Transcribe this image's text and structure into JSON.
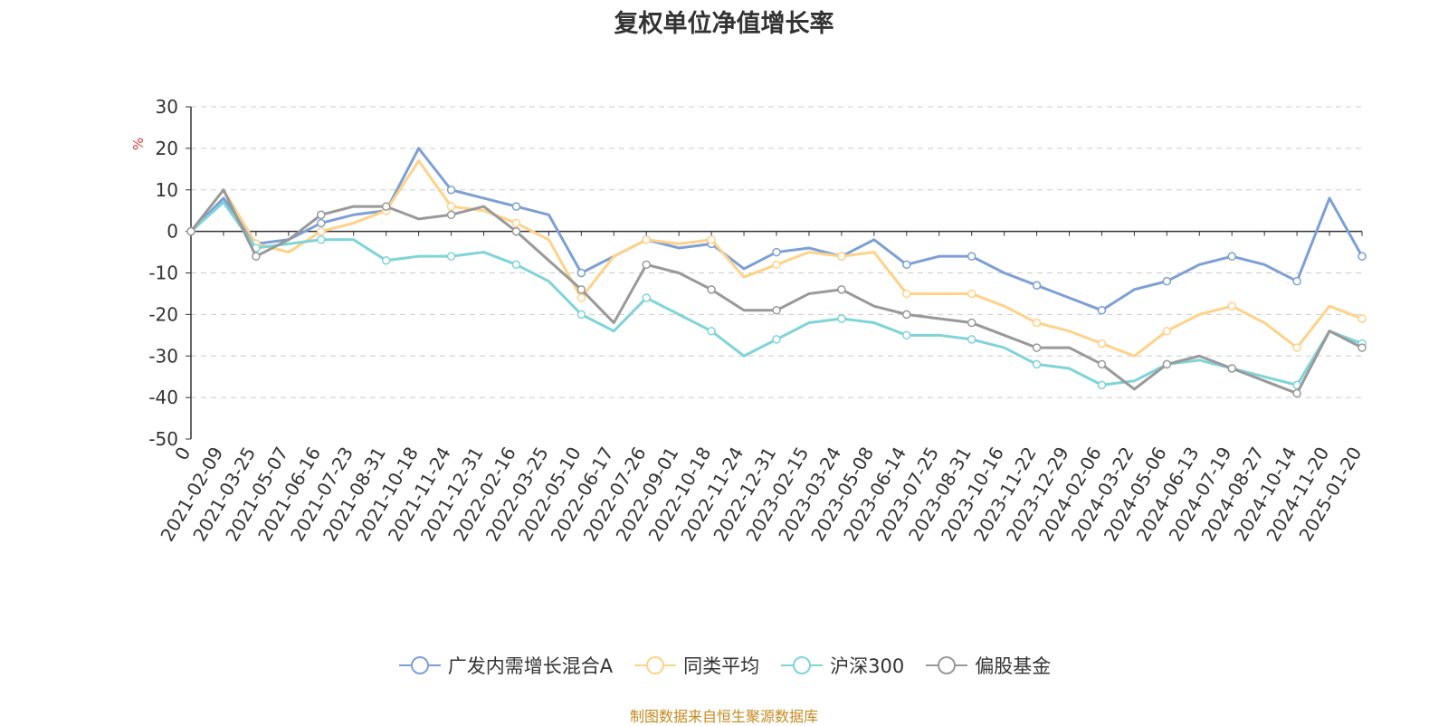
{
  "chart_data": {
    "type": "line",
    "title": "复权单位净值增长率",
    "ylabel": "%",
    "ylim": [
      -50,
      30
    ],
    "y_ticks": [
      30,
      20,
      10,
      0,
      -10,
      -20,
      -30,
      -40,
      -50
    ],
    "x_tick_labels": [
      "0",
      "2021-02-09",
      "2021-03-25",
      "2021-05-07",
      "2021-06-16",
      "2021-07-23",
      "2021-08-31",
      "2021-10-18",
      "2021-11-24",
      "2021-12-31",
      "2022-02-16",
      "2022-03-25",
      "2022-05-10",
      "2022-06-17",
      "2022-07-26",
      "2022-09-01",
      "2022-10-18",
      "2022-11-24",
      "2022-12-31",
      "2023-02-15",
      "2023-03-24",
      "2023-05-08",
      "2023-06-14",
      "2023-07-25",
      "2023-08-31",
      "2023-10-16",
      "2023-11-22",
      "2023-12-29",
      "2024-02-06",
      "2024-03-22",
      "2024-05-06",
      "2024-06-13",
      "2024-07-19",
      "2024-08-27",
      "2024-10-14",
      "2024-11-20",
      "2025-01-20"
    ],
    "grid": true,
    "legend_position": "bottom",
    "series": [
      {
        "name": "广发内需增长混合A",
        "color": "#7c9fd6",
        "values": [
          0,
          8,
          -3,
          -2,
          2,
          4,
          5,
          20,
          10,
          8,
          6,
          4,
          -10,
          -6,
          -2,
          -4,
          -3,
          -9,
          -5,
          -4,
          -6,
          -2,
          -8,
          -6,
          -6,
          -10,
          -13,
          -16,
          -19,
          -14,
          -12,
          -8,
          -6,
          -8,
          -12,
          8,
          -6
        ]
      },
      {
        "name": "同类平均",
        "color": "#ffd28a",
        "values": [
          0,
          10,
          -3,
          -5,
          0,
          2,
          5,
          17,
          6,
          5,
          2,
          -2,
          -16,
          -6,
          -2,
          -3,
          -2,
          -11,
          -8,
          -5,
          -6,
          -5,
          -15,
          -15,
          -15,
          -18,
          -22,
          -24,
          -27,
          -30,
          -24,
          -20,
          -18,
          -22,
          -28,
          -18,
          -21
        ]
      },
      {
        "name": "沪深300",
        "color": "#7fd4da",
        "values": [
          0,
          7,
          -4,
          -3,
          -2,
          -2,
          -7,
          -6,
          -6,
          -5,
          -8,
          -12,
          -20,
          -24,
          -16,
          -20,
          -24,
          -30,
          -26,
          -22,
          -21,
          -22,
          -25,
          -25,
          -26,
          -28,
          -32,
          -33,
          -37,
          -36,
          -32,
          -31,
          -33,
          -35,
          -37,
          -24,
          -27
        ]
      },
      {
        "name": "偏股基金",
        "color": "#999999",
        "values": [
          0,
          10,
          -6,
          -2,
          4,
          6,
          6,
          3,
          4,
          6,
          0,
          -7,
          -14,
          -22,
          -8,
          -10,
          -14,
          -19,
          -19,
          -15,
          -14,
          -18,
          -20,
          -21,
          -22,
          -25,
          -28,
          -28,
          -32,
          -38,
          -32,
          -30,
          -33,
          -36,
          -39,
          -24,
          -28
        ]
      }
    ]
  },
  "source_text": "制图数据来自恒生聚源数据库"
}
